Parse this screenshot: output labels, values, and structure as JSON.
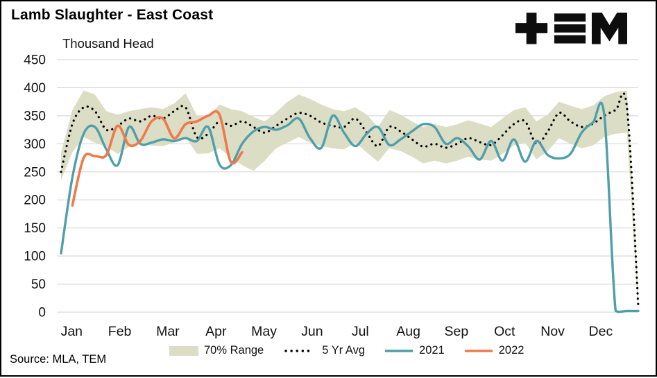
{
  "source": "Source: MLA, TEM",
  "chart_data": {
    "type": "line",
    "title": "Lamb Slaughter - East Coast",
    "ylabel": "Thousand Head",
    "ylim": [
      0,
      450
    ],
    "ytick_step": 50,
    "x_unit": "week-of-year",
    "weeks_per_year": 52,
    "x_tick_labels": [
      "Jan",
      "Feb",
      "Mar",
      "Apr",
      "May",
      "Jun",
      "Jul",
      "Aug",
      "Sep",
      "Oct",
      "Nov",
      "Dec"
    ],
    "grid": "horizontal",
    "gridline_color": "#d9d9d9",
    "legend_position": "bottom",
    "series": [
      {
        "name": "70% Range",
        "kind": "band",
        "color": "#dcddc5",
        "start_week": 1,
        "upper": [
          285,
          360,
          395,
          388,
          358,
          352,
          358,
          362,
          365,
          362,
          372,
          390,
          350,
          348,
          370,
          362,
          358,
          348,
          340,
          356,
          375,
          388,
          380,
          370,
          362,
          358,
          365,
          352,
          330,
          360,
          352,
          340,
          330,
          335,
          330,
          335,
          342,
          336,
          330,
          345,
          360,
          365,
          340,
          352,
          375,
          368,
          362,
          368,
          385,
          392,
          395,
          40
        ],
        "lower": [
          235,
          285,
          312,
          302,
          295,
          282,
          295,
          300,
          297,
          296,
          302,
          312,
          282,
          283,
          292,
          275,
          262,
          252,
          270,
          292,
          302,
          312,
          302,
          296,
          292,
          290,
          302,
          285,
          268,
          292,
          287,
          277,
          265,
          270,
          265,
          270,
          277,
          272,
          270,
          282,
          297,
          302,
          272,
          287,
          310,
          300,
          292,
          297,
          312,
          318,
          320,
          0
        ]
      },
      {
        "name": "5 Yr Avg",
        "kind": "dotted-line",
        "color": "#000000",
        "start_week": 1,
        "values": [
          250,
          335,
          365,
          358,
          325,
          332,
          345,
          340,
          350,
          345,
          358,
          365,
          312,
          318,
          340,
          332,
          340,
          330,
          320,
          332,
          345,
          355,
          350,
          338,
          332,
          330,
          345,
          320,
          296,
          330,
          322,
          308,
          295,
          300,
          293,
          300,
          310,
          303,
          298,
          315,
          335,
          340,
          300,
          322,
          355,
          340,
          330,
          336,
          350,
          360,
          365,
          10
        ]
      },
      {
        "name": "2021",
        "kind": "line",
        "color": "#4f9faa",
        "start_week": 1,
        "values": [
          105,
          240,
          318,
          330,
          290,
          262,
          330,
          300,
          302,
          308,
          305,
          310,
          305,
          330,
          263,
          262,
          300,
          322,
          330,
          325,
          333,
          345,
          310,
          293,
          350,
          320,
          296,
          318,
          330,
          298,
          308,
          322,
          335,
          330,
          300,
          310,
          295,
          272,
          305,
          270,
          308,
          268,
          305,
          280,
          274,
          282,
          320,
          338,
          350,
          2,
          2,
          2
        ]
      },
      {
        "name": "2022",
        "kind": "line",
        "color": "#ee7a4b",
        "start_week": 2,
        "values": [
          190,
          275,
          278,
          280,
          332,
          298,
          305,
          340,
          345,
          310,
          335,
          340,
          350,
          352,
          268,
          285
        ]
      }
    ]
  }
}
